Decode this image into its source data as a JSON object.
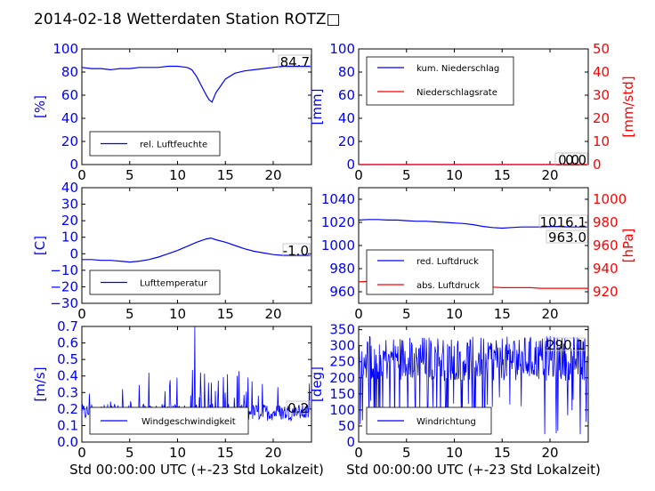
{
  "figure": {
    "title": "2014-02-18 Wetterdaten Station ROTZ□",
    "x_axis_label": "Std 00:00:00 UTC (+-23 Std Lokalzeit)"
  },
  "colors": {
    "blue": "#0000ff",
    "red": "#ff0000",
    "axis": "#000000",
    "background": "#ffffff"
  },
  "chart_data": [
    {
      "id": "humidity",
      "type": "line",
      "xlim": [
        0,
        24
      ],
      "ylim": [
        0,
        100
      ],
      "x_ticks": [
        "0",
        "5",
        "10",
        "15",
        "20"
      ],
      "y_ticks": [
        "0",
        "20",
        "40",
        "60",
        "80",
        "100"
      ],
      "ylabel": "[%]",
      "legend": [
        {
          "label": "rel. Luftfeuchte",
          "color": "#0000ff"
        }
      ],
      "legend_position": "lower-left",
      "annotations": [
        "84.7"
      ],
      "series": [
        {
          "name": "rel. Luftfeuchte",
          "color": "#0000ff",
          "x": [
            0,
            1,
            2,
            3,
            4,
            5,
            6,
            7,
            8,
            9,
            10,
            11,
            11.5,
            12,
            12.5,
            13,
            13.3,
            13.6,
            14,
            14.5,
            15,
            16,
            17,
            18,
            19,
            20,
            21,
            22,
            23,
            23.9
          ],
          "y": [
            84,
            83,
            83,
            82,
            83,
            83,
            84,
            84,
            84,
            85,
            85,
            84,
            82,
            76,
            68,
            60,
            56,
            54,
            62,
            68,
            74,
            79,
            81,
            82,
            83,
            84,
            85,
            85,
            85,
            85
          ]
        }
      ]
    },
    {
      "id": "precipitation",
      "type": "line",
      "xlim": [
        0,
        24
      ],
      "ylim": [
        0,
        100
      ],
      "ylim_right": [
        0,
        50
      ],
      "x_ticks": [
        "0",
        "5",
        "10",
        "15",
        "20"
      ],
      "y_ticks": [
        "0",
        "20",
        "40",
        "60",
        "80",
        "100"
      ],
      "y_ticks_right": [
        "0",
        "10",
        "20",
        "30",
        "40",
        "50"
      ],
      "ylabel": "[mm]",
      "ylabel_right": "[mm/std]",
      "legend": [
        {
          "label": "kum. Niederschlag",
          "color": "#0000ff"
        },
        {
          "label": "Niederschlagsrate",
          "color": "#ff0000"
        }
      ],
      "legend_position": "upper-left",
      "annotations": [
        "0.0",
        "0.0"
      ],
      "series": [
        {
          "name": "kum. Niederschlag",
          "color": "#0000ff",
          "x": [
            0,
            24
          ],
          "y": [
            0,
            0
          ]
        },
        {
          "name": "Niederschlagsrate",
          "color": "#ff0000",
          "x": [
            0,
            24
          ],
          "y": [
            0,
            0
          ]
        }
      ]
    },
    {
      "id": "temperature",
      "type": "line",
      "xlim": [
        0,
        24
      ],
      "ylim": [
        -30,
        40
      ],
      "x_ticks": [
        "0",
        "5",
        "10",
        "15",
        "20"
      ],
      "y_ticks": [
        "−30",
        "−20",
        "−10",
        "0",
        "10",
        "20",
        "30",
        "40"
      ],
      "ylabel": "[C]",
      "legend": [
        {
          "label": "Lufttemperatur",
          "color": "#0000ff"
        }
      ],
      "legend_position": "lower-left",
      "annotations": [
        "-1.0"
      ],
      "series": [
        {
          "name": "Lufttemperatur",
          "color": "#0000ff",
          "x": [
            0,
            1,
            2,
            3,
            4,
            5,
            6,
            7,
            8,
            9,
            10,
            11,
            12,
            12.5,
            13,
            13.5,
            14,
            15,
            16,
            17,
            18,
            19,
            20,
            21,
            22,
            23,
            23.9
          ],
          "y": [
            -3.5,
            -3.5,
            -4,
            -4,
            -4.5,
            -5,
            -4.5,
            -3.5,
            -2,
            0,
            2,
            4.5,
            7,
            8,
            9,
            9.5,
            8.5,
            7,
            5,
            3,
            1.5,
            0.5,
            -0.5,
            -1,
            -1,
            -1,
            -1
          ]
        }
      ]
    },
    {
      "id": "pressure",
      "type": "line",
      "xlim": [
        0,
        24
      ],
      "ylim": [
        950,
        1050
      ],
      "ylim_right": [
        910,
        1010
      ],
      "x_ticks": [
        "0",
        "5",
        "10",
        "15",
        "20"
      ],
      "y_ticks": [
        "960",
        "980",
        "1000",
        "1020",
        "1040"
      ],
      "y_ticks_right": [
        "920",
        "940",
        "960",
        "980",
        "1000"
      ],
      "ylabel_right": "[hPa]",
      "legend": [
        {
          "label": "red. Luftdruck",
          "color": "#0000ff"
        },
        {
          "label": "abs. Luftdruck",
          "color": "#ff0000"
        }
      ],
      "legend_position": "lower-left",
      "annotations": [
        "1016.1",
        "963.0"
      ],
      "series": [
        {
          "name": "red. Luftdruck",
          "color": "#0000ff",
          "x": [
            0,
            1,
            2,
            3,
            4,
            5,
            6,
            7,
            8,
            9,
            10,
            11,
            12,
            13,
            14,
            15,
            16,
            17,
            18,
            19,
            20,
            21,
            22,
            23,
            24
          ],
          "y": [
            1022,
            1022.5,
            1022.5,
            1022,
            1022,
            1021.5,
            1021,
            1021,
            1020.5,
            1020,
            1019.5,
            1019,
            1018,
            1016.5,
            1015.5,
            1015,
            1015.5,
            1016,
            1016,
            1016,
            1016.5,
            1016.5,
            1016,
            1016,
            1016
          ]
        },
        {
          "name": "abs. Luftdruck",
          "color": "#ff0000",
          "x": [
            0,
            1,
            2,
            3,
            4,
            5,
            6,
            7,
            8,
            9,
            10,
            11,
            12,
            13,
            14,
            15,
            16,
            17,
            18,
            19,
            20,
            21,
            22,
            23,
            24
          ],
          "y": [
            968.5,
            969,
            969,
            968.5,
            968.5,
            968,
            968,
            967.5,
            967.5,
            967,
            966.5,
            966,
            965.5,
            964.5,
            964,
            963.5,
            963.5,
            963.5,
            963.5,
            963,
            963,
            963,
            963,
            963,
            963
          ]
        }
      ]
    },
    {
      "id": "windspeed",
      "type": "line",
      "xlim": [
        0,
        24
      ],
      "ylim": [
        0,
        0.7
      ],
      "x_ticks": [
        "0",
        "5",
        "10",
        "15",
        "20"
      ],
      "y_ticks": [
        "0.0",
        "0.1",
        "0.2",
        "0.3",
        "0.4",
        "0.5",
        "0.6",
        "0.7"
      ],
      "ylabel": "[m/s]",
      "xlabel": "Std 00:00:00 UTC (+-23 Std Lokalzeit)",
      "legend": [
        {
          "label": "Windgeschwindigkeit",
          "color": "#0000ff"
        }
      ],
      "legend_position": "lower-center",
      "annotations": [
        "0.2"
      ],
      "noisy_series": {
        "name": "Windgeschwindigkeit",
        "color": "#0000ff",
        "points": 400,
        "baseline": 0.18,
        "spread": 0.05,
        "peak_x": 11.8,
        "peak_y": 0.7,
        "max_regular": 0.45
      },
      "series": []
    },
    {
      "id": "winddirection",
      "type": "line",
      "xlim": [
        0,
        24
      ],
      "ylim": [
        0,
        360
      ],
      "x_ticks": [
        "0",
        "5",
        "10",
        "15",
        "20"
      ],
      "y_ticks": [
        "0",
        "50",
        "100",
        "150",
        "200",
        "250",
        "300",
        "350"
      ],
      "ylabel": "[deg]",
      "xlabel": "Std 00:00:00 UTC (+-23 Std Lokalzeit)",
      "legend": [
        {
          "label": "Windrichtung",
          "color": "#0000ff"
        }
      ],
      "legend_position": "lower-left",
      "annotations": [
        "290.1"
      ],
      "noisy_series": {
        "name": "Windrichtung",
        "color": "#0000ff",
        "points": 420,
        "baseline": 260,
        "spread": 70,
        "min": 20,
        "max": 350
      },
      "series": []
    }
  ]
}
